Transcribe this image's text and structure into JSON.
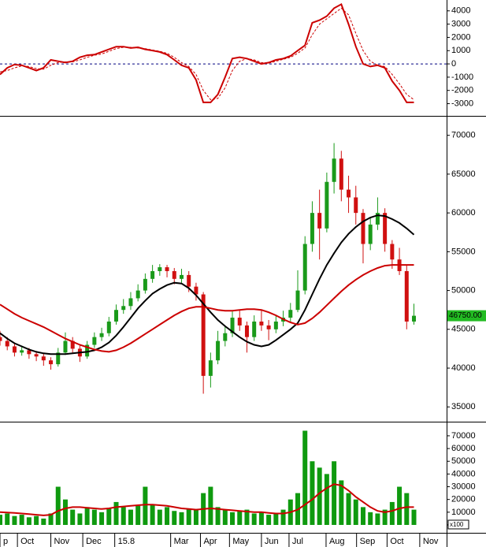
{
  "chart_data": [
    {
      "type": "line",
      "xlim": [
        0,
        61.5
      ],
      "ylim": [
        -3800,
        4700
      ],
      "yticks": [
        4000,
        3000,
        2000,
        1000,
        0,
        -1000,
        -2000,
        -3000
      ],
      "hline": 0,
      "hline_color": "#000080",
      "series": [
        {
          "color": "#cc0000",
          "values": [
            -800,
            -300,
            -50,
            -100,
            -300,
            -500,
            -300,
            300,
            200,
            100,
            200,
            500,
            650,
            700,
            900,
            1100,
            1300,
            1300,
            1200,
            1250,
            1100,
            1000,
            900,
            700,
            300,
            -100,
            -300,
            -1200,
            -2900,
            -2900,
            -2300,
            -1000,
            400,
            500,
            400,
            200,
            0,
            100,
            300,
            400,
            600,
            1000,
            1400,
            3100,
            3300,
            3600,
            4200,
            4500,
            3000,
            1300,
            0,
            -200,
            -100,
            -300,
            -1300,
            -2000,
            -2900,
            -2900
          ]
        },
        {
          "color": "#cc0000",
          "dashed": true,
          "values": [
            -600,
            -500,
            -300,
            -150,
            -200,
            -350,
            -400,
            -100,
            100,
            150,
            150,
            300,
            500,
            650,
            750,
            950,
            1150,
            1250,
            1250,
            1200,
            1150,
            1050,
            950,
            800,
            500,
            100,
            -200,
            -800,
            -2000,
            -2700,
            -2600,
            -1800,
            -500,
            200,
            400,
            300,
            100,
            50,
            200,
            350,
            500,
            800,
            1200,
            2200,
            3000,
            3400,
            3800,
            4200,
            3700,
            2300,
            1000,
            200,
            -100,
            -200,
            -800,
            -1500,
            -2300,
            -2700
          ]
        }
      ]
    },
    {
      "type": "candlestick",
      "xlim": [
        0,
        61.5
      ],
      "ylim": [
        33300,
        72000
      ],
      "yticks": [
        70000,
        65000,
        60000,
        55000,
        50000,
        45000,
        40000,
        35000
      ],
      "up_color": "#1a9a1a",
      "down_color": "#d01010",
      "open": [
        44000,
        43500,
        42800,
        42000,
        42300,
        41800,
        41500,
        41000,
        40500,
        42000,
        43500,
        42500,
        41500,
        43000,
        44000,
        44500,
        46000,
        47500,
        48000,
        49000,
        50000,
        51500,
        52500,
        53000,
        52500,
        51500,
        52000,
        50500,
        49500,
        39000,
        41000,
        43500,
        44500,
        46500,
        45500,
        44000,
        46000,
        45500,
        45000,
        46000,
        46500,
        47500,
        50000,
        56000,
        60000,
        58000,
        64000,
        67000,
        63000,
        62000,
        60000,
        56000,
        58500,
        60000,
        56000,
        54000,
        52500,
        46000
      ],
      "high": [
        44800,
        44000,
        43200,
        42900,
        42600,
        42200,
        41900,
        41400,
        42600,
        44600,
        44000,
        42900,
        43500,
        44600,
        45200,
        46600,
        48200,
        48900,
        49800,
        50800,
        52200,
        53300,
        53400,
        53300,
        52900,
        52800,
        52500,
        51000,
        49800,
        42000,
        44800,
        45500,
        47300,
        47500,
        46000,
        46800,
        47500,
        46200,
        46800,
        47400,
        48400,
        52600,
        57000,
        61500,
        63000,
        65200,
        69000,
        68000,
        64800,
        63500,
        60500,
        59500,
        62000,
        60600,
        56500,
        55500,
        53300,
        48300
      ],
      "low": [
        42900,
        42300,
        41500,
        41600,
        41200,
        40900,
        40300,
        39800,
        40200,
        41700,
        42000,
        40800,
        41200,
        42600,
        43500,
        44100,
        45600,
        47000,
        47500,
        48600,
        49600,
        51000,
        51900,
        51700,
        50800,
        51000,
        49800,
        48700,
        36700,
        37500,
        40500,
        42800,
        44000,
        44800,
        42000,
        43500,
        44800,
        43600,
        44500,
        45400,
        46000,
        47200,
        49500,
        55000,
        54000,
        57500,
        62500,
        61500,
        60000,
        58500,
        53500,
        55200,
        57800,
        55000,
        52800,
        52000,
        45000,
        45600
      ],
      "close": [
        43500,
        42800,
        42000,
        42300,
        41800,
        41500,
        41000,
        40500,
        42000,
        43500,
        42500,
        41500,
        43000,
        44000,
        44500,
        46000,
        47500,
        48000,
        49000,
        50000,
        51500,
        52500,
        53000,
        52500,
        51500,
        52000,
        50500,
        49500,
        39000,
        41000,
        43500,
        44500,
        46500,
        45500,
        44000,
        46000,
        45500,
        45000,
        46000,
        46500,
        47500,
        50000,
        56000,
        60000,
        58000,
        64000,
        67000,
        63000,
        62000,
        60000,
        56000,
        58500,
        60000,
        56000,
        54000,
        52500,
        46000,
        46750
      ],
      "series": [
        {
          "color": "#000000",
          "values": [
            44500,
            43800,
            43200,
            42800,
            42400,
            42100,
            41900,
            41800,
            41800,
            41800,
            41900,
            42000,
            42100,
            42300,
            42700,
            43300,
            44200,
            45300,
            46500,
            47700,
            48700,
            49600,
            50200,
            50700,
            51000,
            50900,
            50300,
            49400,
            48300,
            47200,
            46200,
            45400,
            44700,
            44000,
            43400,
            43000,
            42800,
            43000,
            43600,
            44300,
            45000,
            45800,
            47500,
            49500,
            51500,
            53300,
            54800,
            56200,
            57300,
            58200,
            58900,
            59400,
            59700,
            59600,
            59200,
            58700,
            58000,
            57200
          ]
        },
        {
          "color": "#cc0000",
          "values": [
            48200,
            47600,
            47000,
            46500,
            46100,
            45700,
            45300,
            44800,
            44300,
            43800,
            43400,
            43000,
            42700,
            42400,
            42200,
            42100,
            42300,
            42700,
            43200,
            43800,
            44400,
            45000,
            45600,
            46200,
            46800,
            47300,
            47700,
            47900,
            47900,
            47700,
            47500,
            47400,
            47400,
            47500,
            47600,
            47600,
            47500,
            47200,
            46800,
            46300,
            45900,
            45600,
            45800,
            46400,
            47200,
            48100,
            49000,
            49900,
            50700,
            51400,
            52000,
            52500,
            52900,
            53200,
            53300,
            53300,
            53300,
            53300
          ]
        }
      ],
      "last_price": {
        "value": 46750,
        "label": "46750.00"
      },
      "last_price_color": "#22bb22"
    },
    {
      "type": "bar",
      "xlim": [
        0,
        61.5
      ],
      "ylim": [
        0,
        78000
      ],
      "yticks": [
        70000,
        60000,
        50000,
        40000,
        30000,
        20000,
        10000,
        0
      ],
      "unit_label": "x100",
      "color": "#0f9a0f",
      "values": [
        8000,
        9000,
        7000,
        8000,
        6000,
        7000,
        5000,
        9000,
        30000,
        20000,
        12000,
        9000,
        14000,
        12000,
        10000,
        13000,
        18000,
        14000,
        12000,
        15000,
        30000,
        16000,
        12000,
        14000,
        11000,
        10000,
        13000,
        12000,
        25000,
        30000,
        14000,
        12000,
        10000,
        11000,
        12000,
        9000,
        10000,
        8000,
        9000,
        12000,
        20000,
        25000,
        74000,
        50000,
        45000,
        40000,
        50000,
        35000,
        25000,
        20000,
        14000,
        10000,
        9000,
        12000,
        18000,
        30000,
        25000,
        12000
      ],
      "series": [
        {
          "color": "#cc0000",
          "values": [
            10000,
            9800,
            9500,
            9000,
            8500,
            8000,
            7500,
            8000,
            11000,
            13000,
            14000,
            14000,
            13500,
            13000,
            12500,
            13000,
            14000,
            14500,
            15000,
            15500,
            16000,
            16000,
            15500,
            15000,
            14000,
            13000,
            12500,
            12000,
            12500,
            13000,
            12500,
            12000,
            11500,
            11000,
            10500,
            10000,
            10000,
            9500,
            9000,
            9000,
            10000,
            12000,
            16000,
            20000,
            25000,
            29000,
            32000,
            31000,
            27000,
            22000,
            18000,
            14000,
            11000,
            10000,
            11000,
            13000,
            14000,
            14000
          ]
        }
      ],
      "xticks": [
        {
          "value": 0,
          "label": "p"
        },
        {
          "value": 2.4,
          "label": "Oct"
        },
        {
          "value": 7.0,
          "label": "Nov"
        },
        {
          "value": 11.4,
          "label": "Dec"
        },
        15.8,
        {
          "value": 23.5,
          "label": "Mar"
        },
        {
          "value": 27.6,
          "label": "Apr"
        },
        {
          "value": 31.6,
          "label": "May"
        },
        {
          "value": 36.0,
          "label": "Jun"
        },
        {
          "value": 39.8,
          "label": "Jul"
        },
        {
          "value": 44.9,
          "label": "Aug"
        },
        {
          "value": 49.1,
          "label": "Sep"
        },
        {
          "value": 53.3,
          "label": "Oct"
        },
        {
          "value": 57.8,
          "label": "Nov"
        }
      ]
    }
  ]
}
